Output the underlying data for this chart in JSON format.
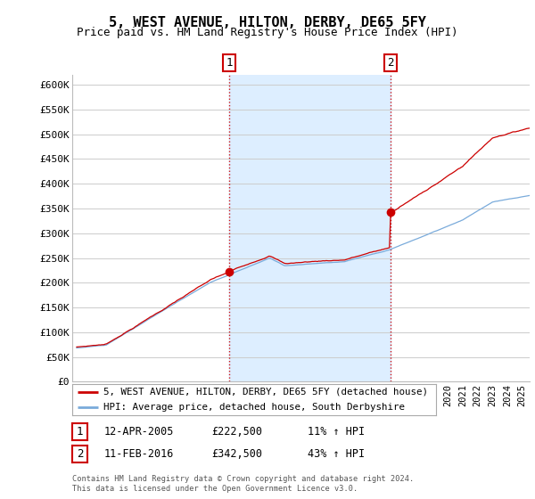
{
  "title": "5, WEST AVENUE, HILTON, DERBY, DE65 5FY",
  "subtitle": "Price paid vs. HM Land Registry's House Price Index (HPI)",
  "legend_line1": "5, WEST AVENUE, HILTON, DERBY, DE65 5FY (detached house)",
  "legend_line2": "HPI: Average price, detached house, South Derbyshire",
  "annotation1_date": "12-APR-2005",
  "annotation1_price": "£222,500",
  "annotation1_hpi": "11% ↑ HPI",
  "annotation2_date": "11-FEB-2016",
  "annotation2_price": "£342,500",
  "annotation2_hpi": "43% ↑ HPI",
  "footer": "Contains HM Land Registry data © Crown copyright and database right 2024.\nThis data is licensed under the Open Government Licence v3.0.",
  "ylim": [
    0,
    620000
  ],
  "yticks": [
    0,
    50000,
    100000,
    150000,
    200000,
    250000,
    300000,
    350000,
    400000,
    450000,
    500000,
    550000,
    600000
  ],
  "ytick_labels": [
    "£0",
    "£50K",
    "£100K",
    "£150K",
    "£200K",
    "£250K",
    "£300K",
    "£350K",
    "£400K",
    "£450K",
    "£500K",
    "£550K",
    "£600K"
  ],
  "sale1_year": 2005.28,
  "sale1_price": 222500,
  "sale2_year": 2016.12,
  "sale2_price": 342500,
  "line_color_property": "#cc0000",
  "line_color_hpi": "#7aabdb",
  "shade_color": "#ddeeff",
  "vline_color": "#cc0000",
  "background_color": "#ffffff",
  "grid_color": "#cccccc",
  "title_fontsize": 11,
  "subtitle_fontsize": 9
}
